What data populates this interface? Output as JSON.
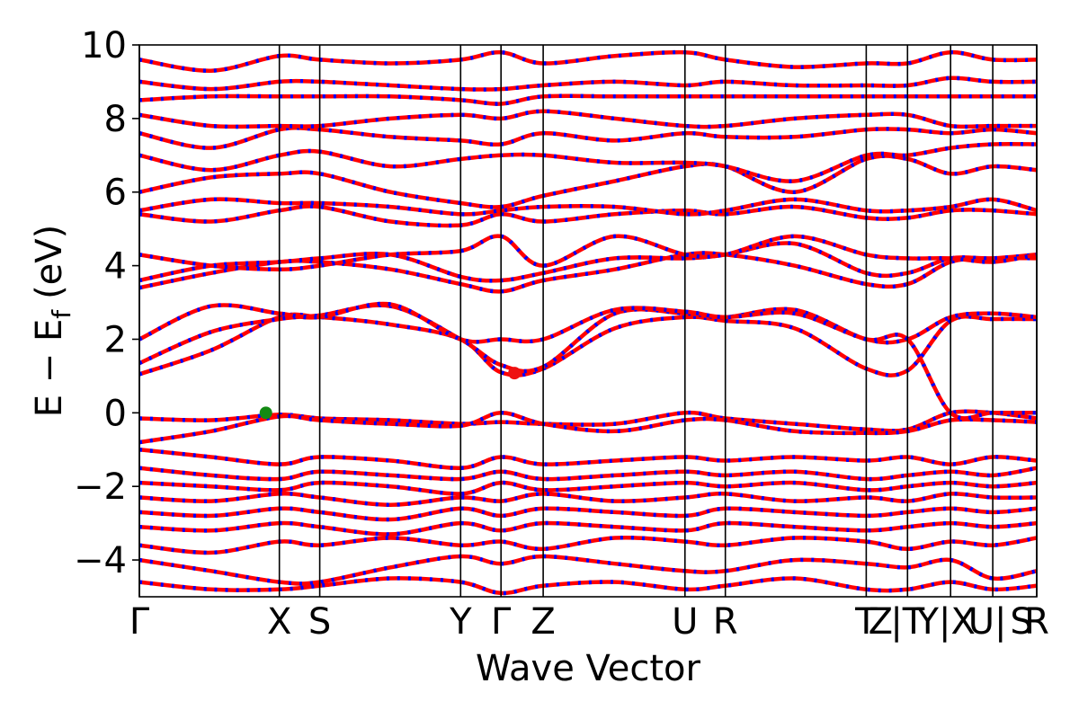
{
  "chart_data": {
    "type": "line",
    "title": "",
    "xlabel": "Wave Vector",
    "ylabel": "E − E",
    "ylabel_sub": "f",
    "ylabel_unit": "(eV)",
    "ylim": [
      -5,
      10
    ],
    "yticks": [
      -4,
      -2,
      0,
      2,
      4,
      6,
      8,
      10
    ],
    "ytick_labels": [
      "−4",
      "−2",
      "0",
      "2",
      "4",
      "6",
      "8",
      "10"
    ],
    "xlim": [
      0,
      100
    ],
    "kpoints": [
      {
        "label": "Γ",
        "x": 0
      },
      {
        "label": "X",
        "x": 15.6
      },
      {
        "label": "S",
        "x": 20.1
      },
      {
        "label": "Y",
        "x": 35.8
      },
      {
        "label": "Γ",
        "x": 40.3
      },
      {
        "label": "Z",
        "x": 45.0
      },
      {
        "label": "U",
        "x": 60.8
      },
      {
        "label": "R",
        "x": 65.3
      },
      {
        "label": "T",
        "x": 81.0
      },
      {
        "label": "Z",
        "x": 82.6
      },
      {
        "label": "|T",
        "x": 85.6
      },
      {
        "label": "Y|X",
        "x": 89.9
      },
      {
        "label": "U|",
        "x": 94.5
      },
      {
        "label": "S",
        "x": 98.3
      },
      {
        "label": "R",
        "x": 100
      }
    ],
    "divider_x": [
      0,
      15.6,
      20.1,
      35.8,
      40.3,
      45.0,
      60.8,
      65.3,
      81.0,
      85.6,
      90.4,
      95.1,
      100
    ],
    "vbm": {
      "x": 14.1,
      "y": 0.0,
      "color": "#138a13"
    },
    "cbm": {
      "x": 41.8,
      "y": 1.08,
      "color": "#ee1111"
    },
    "band_colors": {
      "spin_up": "#ff0000",
      "spin_down": "#0000ff"
    },
    "bands": [
      {
        "x": [
          0,
          8,
          15.6,
          20.1,
          28,
          35.8,
          40.3,
          45,
          53,
          60.8,
          65.3,
          73,
          81,
          85.6,
          90.4,
          95.1,
          100
        ],
        "y": [
          -0.15,
          -0.2,
          -0.05,
          -0.15,
          -0.2,
          -0.3,
          -0.25,
          -0.3,
          -0.3,
          0.0,
          -0.15,
          -0.3,
          -0.45,
          -0.45,
          0.0,
          0.0,
          -0.15
        ]
      },
      {
        "x": [
          0,
          8,
          15.6,
          20.1,
          28,
          35.8,
          40.3,
          45,
          53,
          60.8,
          65.3,
          73,
          81,
          85.6,
          90.4,
          95.1,
          100
        ],
        "y": [
          -0.8,
          -0.5,
          -0.1,
          -0.2,
          -0.3,
          -0.35,
          0.0,
          -0.3,
          -0.5,
          -0.2,
          -0.2,
          -0.5,
          -0.55,
          -0.5,
          -0.2,
          -0.2,
          -0.25
        ]
      },
      {
        "x": [
          0,
          8,
          15.6,
          20.1,
          28,
          35.8,
          40.3,
          45,
          53,
          60.8,
          65.3,
          73,
          81,
          85.6,
          90.4,
          95.1,
          100
        ],
        "y": [
          1.05,
          1.7,
          2.6,
          2.6,
          2.4,
          2.0,
          1.1,
          1.2,
          2.3,
          2.6,
          2.5,
          2.3,
          1.2,
          1.15,
          2.5,
          2.55,
          2.55
        ]
      },
      {
        "x": [
          0,
          8,
          15.6,
          20.1,
          28,
          35.8,
          40.3,
          45,
          53,
          60.8,
          65.3,
          73,
          81,
          85.6,
          90.4,
          95.1,
          100
        ],
        "y": [
          1.35,
          2.2,
          2.55,
          2.65,
          2.9,
          2.0,
          1.3,
          1.25,
          2.7,
          2.7,
          2.6,
          2.8,
          2.0,
          2.0,
          2.6,
          2.7,
          2.6
        ]
      },
      {
        "x": [
          0,
          8,
          15.6,
          20.1,
          28,
          35.8,
          40.3,
          45,
          53,
          60.8,
          65.3,
          73,
          81,
          85.6,
          90.4,
          95.1,
          100
        ],
        "y": [
          2.0,
          2.9,
          2.7,
          2.6,
          2.95,
          2.0,
          2.0,
          2.0,
          2.8,
          2.75,
          2.6,
          2.7,
          2.0,
          2.0,
          0.0,
          0.0,
          0.0
        ]
      },
      {
        "x": [
          0,
          8,
          15.6,
          20.1,
          28,
          35.8,
          40.3,
          45,
          53,
          60.8,
          65.3,
          73,
          81,
          85.6,
          90.4,
          95.1,
          100
        ],
        "y": [
          3.4,
          3.8,
          4.1,
          4.1,
          3.9,
          3.5,
          3.3,
          3.6,
          3.9,
          4.3,
          4.3,
          4.0,
          3.5,
          3.5,
          4.1,
          4.2,
          4.2
        ]
      },
      {
        "x": [
          0,
          8,
          15.6,
          20.1,
          28,
          35.8,
          40.3,
          45,
          53,
          60.8,
          65.3,
          73,
          81,
          85.6,
          90.4,
          95.1,
          100
        ],
        "y": [
          3.6,
          4.0,
          4.1,
          4.2,
          4.3,
          3.7,
          3.6,
          3.8,
          4.2,
          4.2,
          4.3,
          4.6,
          3.8,
          3.8,
          4.2,
          4.2,
          4.3
        ]
      },
      {
        "x": [
          0,
          8,
          15.6,
          20.1,
          28,
          35.8,
          40.3,
          45,
          53,
          60.8,
          65.3,
          73,
          81,
          85.6,
          90.4,
          95.1,
          100
        ],
        "y": [
          4.3,
          4.0,
          3.9,
          4.0,
          4.3,
          4.4,
          4.8,
          4.0,
          4.8,
          4.3,
          4.3,
          4.8,
          4.3,
          4.2,
          4.2,
          4.1,
          4.3
        ]
      },
      {
        "x": [
          0,
          8,
          15.6,
          20.1,
          28,
          35.8,
          40.3,
          45,
          53,
          60.8,
          65.3,
          73,
          81,
          85.6,
          90.4,
          95.1,
          100
        ],
        "y": [
          5.4,
          5.2,
          5.5,
          5.6,
          5.2,
          5.1,
          5.4,
          5.2,
          5.4,
          5.5,
          5.4,
          5.6,
          5.3,
          5.3,
          5.5,
          5.5,
          5.4
        ]
      },
      {
        "x": [
          0,
          8,
          15.6,
          20.1,
          28,
          35.8,
          40.3,
          45,
          53,
          60.8,
          65.3,
          73,
          81,
          85.6,
          90.4,
          95.1,
          100
        ],
        "y": [
          5.5,
          5.8,
          5.7,
          5.7,
          5.6,
          5.4,
          5.5,
          5.6,
          5.6,
          5.4,
          5.5,
          5.8,
          5.5,
          5.5,
          5.6,
          5.8,
          5.5
        ]
      },
      {
        "x": [
          0,
          8,
          15.6,
          20.1,
          28,
          35.8,
          40.3,
          45,
          53,
          60.8,
          65.3,
          73,
          81,
          85.6,
          90.4,
          95.1,
          100
        ],
        "y": [
          6.0,
          6.4,
          6.5,
          6.5,
          6.0,
          5.7,
          5.6,
          5.9,
          6.3,
          6.7,
          6.7,
          6.0,
          6.9,
          6.9,
          6.5,
          6.7,
          6.6
        ]
      },
      {
        "x": [
          0,
          8,
          15.6,
          20.1,
          28,
          35.8,
          40.3,
          45,
          53,
          60.8,
          65.3,
          73,
          81,
          85.6,
          90.4,
          95.1,
          100
        ],
        "y": [
          7.0,
          6.6,
          7.0,
          7.1,
          6.7,
          6.9,
          7.0,
          7.0,
          6.8,
          6.8,
          6.7,
          6.3,
          7.0,
          7.0,
          7.2,
          7.3,
          7.3
        ]
      },
      {
        "x": [
          0,
          8,
          15.6,
          20.1,
          28,
          35.8,
          40.3,
          45,
          53,
          60.8,
          65.3,
          73,
          81,
          85.6,
          90.4,
          95.1,
          100
        ],
        "y": [
          7.6,
          7.2,
          7.7,
          7.7,
          7.5,
          7.4,
          7.3,
          7.6,
          7.4,
          7.6,
          7.5,
          7.5,
          7.7,
          7.7,
          7.6,
          7.7,
          7.6
        ]
      },
      {
        "x": [
          0,
          8,
          15.6,
          20.1,
          28,
          35.8,
          40.3,
          45,
          53,
          60.8,
          65.3,
          73,
          81,
          85.6,
          90.4,
          95.1,
          100
        ],
        "y": [
          8.1,
          7.8,
          7.8,
          7.8,
          8.0,
          8.1,
          8.0,
          8.2,
          8.0,
          7.8,
          7.8,
          8.0,
          8.1,
          8.1,
          7.8,
          7.8,
          7.8
        ]
      },
      {
        "x": [
          0,
          8,
          15.6,
          20.1,
          28,
          35.8,
          40.3,
          45,
          53,
          60.8,
          65.3,
          73,
          81,
          85.6,
          90.4,
          95.1,
          100
        ],
        "y": [
          8.5,
          8.6,
          8.6,
          8.6,
          8.6,
          8.5,
          8.4,
          8.6,
          8.6,
          8.6,
          8.6,
          8.6,
          8.6,
          8.6,
          8.6,
          8.6,
          8.6
        ]
      },
      {
        "x": [
          0,
          8,
          15.6,
          20.1,
          28,
          35.8,
          40.3,
          45,
          53,
          60.8,
          65.3,
          73,
          81,
          85.6,
          90.4,
          95.1,
          100
        ],
        "y": [
          9.0,
          8.8,
          9.0,
          9.0,
          8.9,
          8.8,
          8.8,
          8.9,
          9.0,
          8.9,
          9.0,
          8.9,
          8.9,
          8.9,
          9.1,
          9.0,
          9.0
        ]
      },
      {
        "x": [
          0,
          8,
          15.6,
          20.1,
          28,
          35.8,
          40.3,
          45,
          53,
          60.8,
          65.3,
          73,
          81,
          85.6,
          90.4,
          95.1,
          100
        ],
        "y": [
          9.6,
          9.3,
          9.7,
          9.6,
          9.5,
          9.6,
          9.8,
          9.5,
          9.7,
          9.8,
          9.6,
          9.4,
          9.5,
          9.5,
          9.8,
          9.6,
          9.6
        ]
      },
      {
        "x": [
          0,
          8,
          15.6,
          20.1,
          28,
          35.8,
          40.3,
          45,
          53,
          60.8,
          65.3,
          73,
          81,
          85.6,
          90.4,
          95.1,
          100
        ],
        "y": [
          -1.0,
          -1.2,
          -1.4,
          -1.2,
          -1.3,
          -1.5,
          -1.2,
          -1.4,
          -1.3,
          -1.2,
          -1.3,
          -1.2,
          -1.3,
          -1.2,
          -1.4,
          -1.2,
          -1.3
        ]
      },
      {
        "x": [
          0,
          8,
          15.6,
          20.1,
          28,
          35.8,
          40.3,
          45,
          53,
          60.8,
          65.3,
          73,
          81,
          85.6,
          90.4,
          95.1,
          100
        ],
        "y": [
          -1.5,
          -1.7,
          -1.8,
          -1.6,
          -1.7,
          -1.8,
          -1.6,
          -1.8,
          -1.7,
          -1.6,
          -1.7,
          -1.6,
          -1.8,
          -1.7,
          -1.6,
          -1.7,
          -1.5
        ]
      },
      {
        "x": [
          0,
          8,
          15.6,
          20.1,
          28,
          35.8,
          40.3,
          45,
          53,
          60.8,
          65.3,
          73,
          81,
          85.6,
          90.4,
          95.1,
          100
        ],
        "y": [
          -1.9,
          -2.0,
          -2.1,
          -1.9,
          -2.0,
          -2.2,
          -1.9,
          -2.1,
          -2.0,
          -1.9,
          -2.0,
          -1.9,
          -2.1,
          -2.0,
          -1.9,
          -2.0,
          -1.9
        ]
      },
      {
        "x": [
          0,
          8,
          15.6,
          20.1,
          28,
          35.8,
          40.3,
          45,
          53,
          60.8,
          65.3,
          73,
          81,
          85.6,
          90.4,
          95.1,
          100
        ],
        "y": [
          -2.3,
          -2.4,
          -2.2,
          -2.3,
          -2.5,
          -2.3,
          -2.4,
          -2.2,
          -2.4,
          -2.3,
          -2.2,
          -2.4,
          -2.3,
          -2.4,
          -2.2,
          -2.3,
          -2.3
        ]
      },
      {
        "x": [
          0,
          8,
          15.6,
          20.1,
          28,
          35.8,
          40.3,
          45,
          53,
          60.8,
          65.3,
          73,
          81,
          85.6,
          90.4,
          95.1,
          100
        ],
        "y": [
          -2.7,
          -2.8,
          -2.6,
          -2.7,
          -2.9,
          -2.6,
          -2.8,
          -2.6,
          -2.7,
          -2.8,
          -2.6,
          -2.7,
          -2.8,
          -2.7,
          -2.6,
          -2.7,
          -2.6
        ]
      },
      {
        "x": [
          0,
          8,
          15.6,
          20.1,
          28,
          35.8,
          40.3,
          45,
          53,
          60.8,
          65.3,
          73,
          81,
          85.6,
          90.4,
          95.1,
          100
        ],
        "y": [
          -3.1,
          -3.2,
          -3.0,
          -3.1,
          -3.3,
          -3.0,
          -3.2,
          -3.0,
          -3.1,
          -3.2,
          -3.0,
          -3.1,
          -3.2,
          -3.1,
          -3.0,
          -3.1,
          -3.0
        ]
      },
      {
        "x": [
          0,
          8,
          15.6,
          20.1,
          28,
          35.8,
          40.3,
          45,
          53,
          60.8,
          65.3,
          73,
          81,
          85.6,
          90.4,
          95.1,
          100
        ],
        "y": [
          -3.6,
          -3.8,
          -3.5,
          -3.6,
          -3.4,
          -3.6,
          -3.5,
          -3.7,
          -3.4,
          -3.5,
          -3.6,
          -3.4,
          -3.5,
          -3.7,
          -3.5,
          -3.6,
          -3.4
        ]
      },
      {
        "x": [
          0,
          8,
          15.6,
          20.1,
          28,
          35.8,
          40.3,
          45,
          53,
          60.8,
          65.3,
          73,
          81,
          85.6,
          90.4,
          95.1,
          100
        ],
        "y": [
          -4.0,
          -4.3,
          -4.6,
          -4.6,
          -4.2,
          -3.9,
          -4.1,
          -3.9,
          -4.1,
          -4.3,
          -4.3,
          -4.0,
          -4.1,
          -4.2,
          -4.0,
          -4.5,
          -4.3
        ]
      },
      {
        "x": [
          0,
          8,
          15.6,
          20.1,
          28,
          35.8,
          40.3,
          45,
          53,
          60.8,
          65.3,
          73,
          81,
          85.6,
          90.4,
          95.1,
          100
        ],
        "y": [
          -4.6,
          -4.8,
          -4.8,
          -4.7,
          -4.5,
          -4.6,
          -4.9,
          -4.7,
          -4.6,
          -4.8,
          -4.7,
          -4.5,
          -4.8,
          -4.8,
          -4.6,
          -4.8,
          -4.7
        ]
      }
    ]
  }
}
